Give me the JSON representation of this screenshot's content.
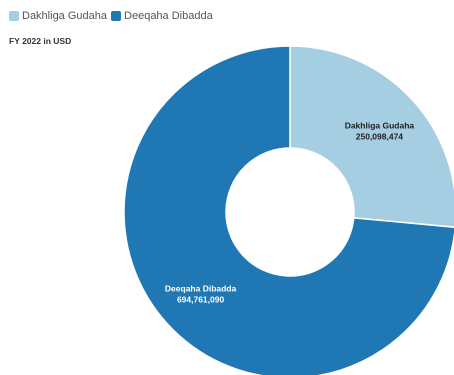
{
  "chart_data": {
    "type": "pie",
    "subtitle": "FY 2022 in USD",
    "legend_position": "top-left",
    "donut": true,
    "categories": [
      "Dakhliga Gudaha",
      "Deeqaha Dibadda"
    ],
    "values": [
      250098474,
      694761090
    ],
    "value_labels": [
      "250,098,474",
      "694,761,090"
    ],
    "colors": [
      "#a6cee3",
      "#1f78b4"
    ],
    "label_colors": [
      "#222222",
      "#ffffff"
    ]
  }
}
